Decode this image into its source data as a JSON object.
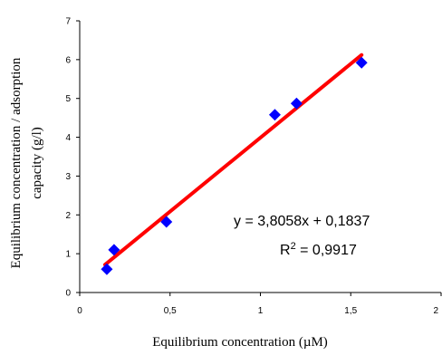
{
  "chart_data": {
    "type": "scatter",
    "xlabel": "Equilibrium concentration  (µM)",
    "ylabel_lines": [
      "Equilibrium concentration / adsorption",
      "capacity  (g/l)"
    ],
    "xlim": [
      0,
      2
    ],
    "ylim": [
      0,
      7
    ],
    "x_ticks": [
      "0",
      "0,5",
      "1",
      "1,5",
      "2"
    ],
    "y_ticks": [
      "0",
      "1",
      "2",
      "3",
      "4",
      "5",
      "6",
      "7"
    ],
    "grid": false,
    "marker_color": "#0000ff",
    "trendline_color": "#ff0000",
    "points": [
      {
        "x": 0.15,
        "y": 0.6
      },
      {
        "x": 0.19,
        "y": 1.1
      },
      {
        "x": 0.48,
        "y": 1.82
      },
      {
        "x": 1.08,
        "y": 4.58
      },
      {
        "x": 1.2,
        "y": 4.87
      },
      {
        "x": 1.56,
        "y": 5.92
      }
    ],
    "trendline": {
      "slope": 3.8058,
      "intercept": 0.1837,
      "x_range": [
        0.14,
        1.56
      ]
    },
    "equation": "y = 3,8058x + 0,1837",
    "r2_prefix": "R",
    "r2_sup": "2",
    "r2_value": " = 0,9917"
  }
}
